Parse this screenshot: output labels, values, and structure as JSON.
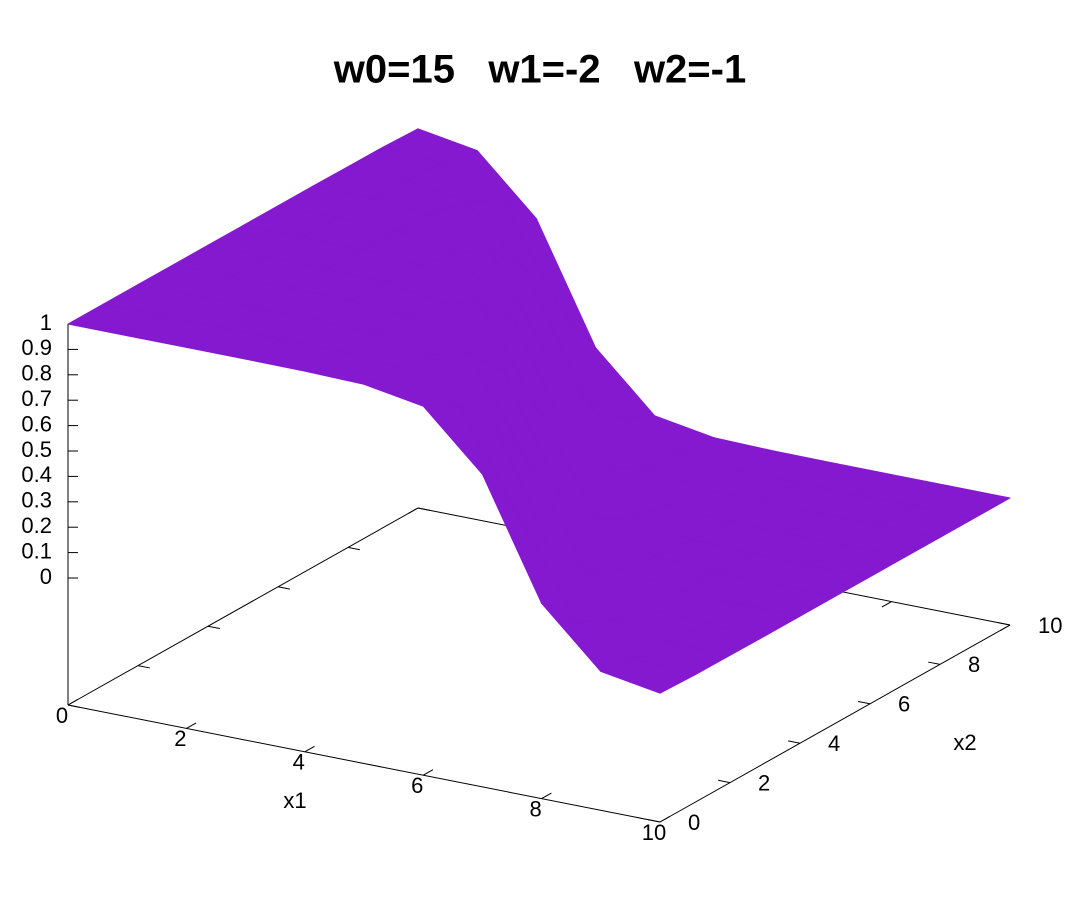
{
  "chart_data": {
    "type": "surface3d",
    "title": "w0=15   w1=-2   w2=-1",
    "xlabel": "x1",
    "ylabel": "x2",
    "color": "#8519cf",
    "xlim": [
      0,
      10
    ],
    "ylim": [
      0,
      10
    ],
    "zlim": [
      0,
      1
    ],
    "xticks": [
      0,
      2,
      4,
      6,
      8,
      10
    ],
    "yticks": [
      0,
      2,
      4,
      6,
      8,
      10
    ],
    "zticks": [
      0,
      0.1,
      0.2,
      0.3,
      0.4,
      0.5,
      0.6,
      0.7,
      0.8,
      0.9,
      1
    ],
    "x1": [
      0,
      1,
      2,
      3,
      4,
      5,
      6,
      7,
      8,
      9,
      10
    ],
    "x2": [
      0,
      1,
      2,
      3,
      4,
      5,
      6,
      7,
      8,
      9,
      10
    ],
    "z": [
      [
        1,
        1,
        1,
        1,
        1,
        1,
        1,
        1,
        0.999,
        0.998,
        0.993
      ],
      [
        1,
        1,
        1,
        1,
        1,
        1,
        0.999,
        0.998,
        0.993,
        0.982,
        0.953
      ],
      [
        1,
        1,
        1,
        1,
        0.999,
        0.998,
        0.993,
        0.982,
        0.953,
        0.881,
        0.731
      ],
      [
        1,
        1,
        0.999,
        0.998,
        0.993,
        0.982,
        0.953,
        0.881,
        0.731,
        0.5,
        0.269
      ],
      [
        0.999,
        0.998,
        0.993,
        0.982,
        0.953,
        0.881,
        0.731,
        0.5,
        0.269,
        0.119,
        0.047
      ],
      [
        0.993,
        0.982,
        0.953,
        0.881,
        0.731,
        0.5,
        0.269,
        0.119,
        0.047,
        0.018,
        0.007
      ],
      [
        0.953,
        0.881,
        0.731,
        0.5,
        0.269,
        0.119,
        0.047,
        0.018,
        0.007,
        0.002,
        0.001
      ],
      [
        0.731,
        0.5,
        0.269,
        0.119,
        0.047,
        0.018,
        0.007,
        0.002,
        0.001,
        0,
        0
      ],
      [
        0.269,
        0.119,
        0.047,
        0.018,
        0.007,
        0.002,
        0.001,
        0,
        0,
        0,
        0
      ],
      [
        0.047,
        0.018,
        0.007,
        0.002,
        0.001,
        0,
        0,
        0,
        0,
        0,
        0
      ],
      [
        0.007,
        0.002,
        0.001,
        0,
        0,
        0,
        0,
        0,
        0,
        0,
        0
      ]
    ]
  }
}
